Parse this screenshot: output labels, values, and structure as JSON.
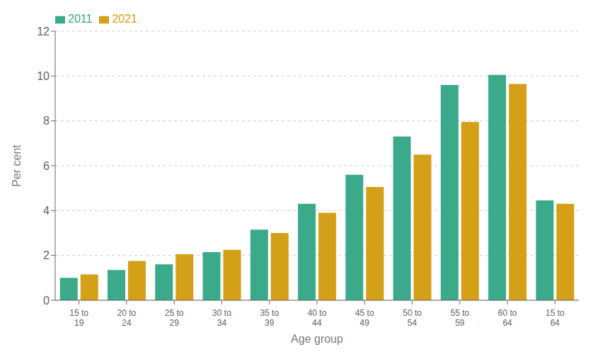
{
  "chart_data": {
    "type": "bar",
    "categories": [
      "15 to\n19",
      "20 to\n24",
      "25 to\n29",
      "30 to\n34",
      "35 to\n39",
      "40 to\n44",
      "45 to\n49",
      "50 to\n54",
      "55 to\n59",
      "60 to\n64",
      "15 to\n64"
    ],
    "series": [
      {
        "name": "2011",
        "color": "#3aaa8a",
        "values": [
          1.0,
          1.35,
          1.6,
          2.15,
          3.15,
          4.3,
          5.6,
          7.3,
          9.6,
          10.05,
          4.45
        ]
      },
      {
        "name": "2021",
        "color": "#d4a017",
        "values": [
          1.15,
          1.75,
          2.05,
          2.25,
          3.0,
          3.9,
          5.05,
          6.5,
          7.95,
          9.65,
          4.3
        ]
      }
    ],
    "xlabel": "Age group",
    "ylabel": "Per cent",
    "ylim": [
      0,
      12
    ],
    "yticks": [
      0,
      2,
      4,
      6,
      8,
      10,
      12
    ],
    "grid": true,
    "legend": "upper left"
  }
}
